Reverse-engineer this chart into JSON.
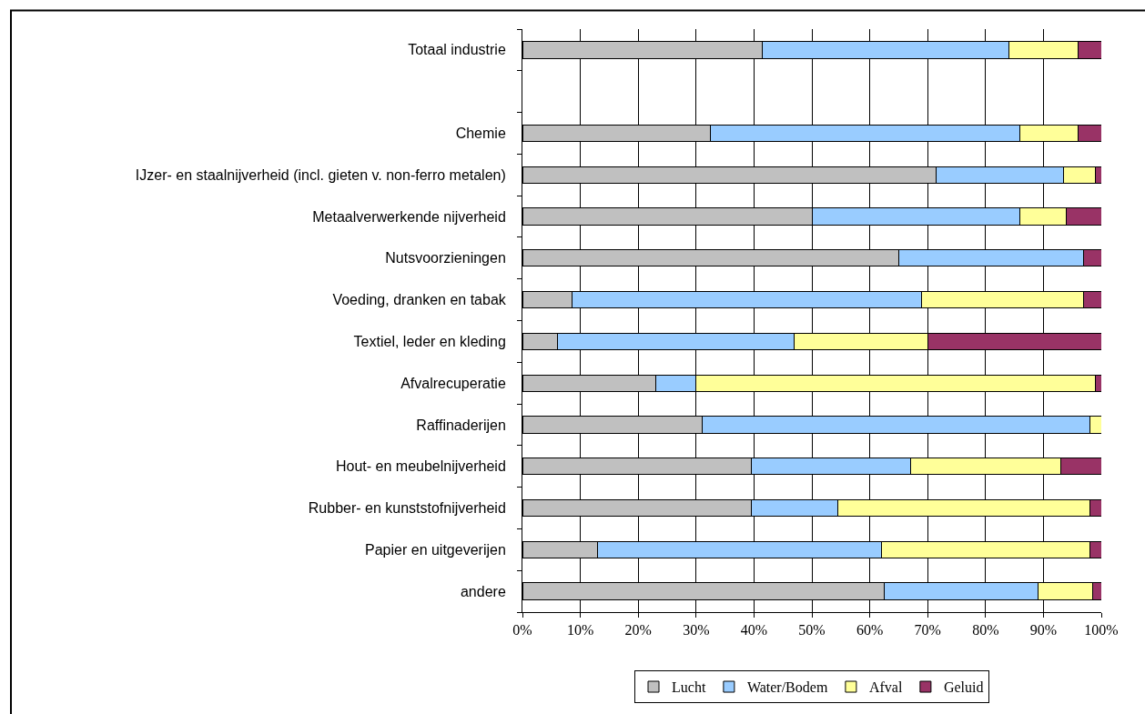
{
  "chart_data": {
    "type": "bar",
    "orientation": "horizontal",
    "stacked": true,
    "categories": [
      "Totaal industrie",
      null,
      "Chemie",
      "IJzer- en staalnijverheid (incl. gieten v. non-ferro metalen)",
      "Metaalverwerkende nijverheid",
      "Nutsvoorzieningen",
      "Voeding, dranken en tabak",
      "Textiel, leder en kleding",
      "Afvalrecuperatie",
      "Raffinaderijen",
      "Hout- en meubelnijverheid",
      "Rubber- en kunststofnijverheid",
      "Papier en uitgeverijen",
      "andere"
    ],
    "series": [
      {
        "name": "Lucht",
        "color": "#c0c0c0",
        "values": [
          41.5,
          null,
          32.5,
          71.5,
          50,
          65,
          8.5,
          6,
          23,
          31,
          39.5,
          39.5,
          13,
          62.5
        ]
      },
      {
        "name": "Water/Bodem",
        "color": "#99ccff",
        "values": [
          42.5,
          null,
          53.5,
          22,
          36,
          32,
          60.5,
          41,
          7,
          67,
          27.5,
          15,
          49,
          26.5
        ]
      },
      {
        "name": "Afval",
        "color": "#ffff99",
        "values": [
          12,
          null,
          10,
          5.5,
          8,
          null,
          28,
          23,
          69,
          2,
          26,
          43.5,
          36,
          9.5
        ]
      },
      {
        "name": "Geluid",
        "color": "#993366",
        "values": [
          4,
          null,
          4,
          1,
          6,
          3,
          3,
          30,
          1,
          null,
          7,
          2,
          2,
          1.5
        ]
      }
    ],
    "xlim": [
      0,
      100
    ],
    "xticks": [
      {
        "value": 0,
        "label": "0%"
      },
      {
        "value": 10,
        "label": "10%"
      },
      {
        "value": 20,
        "label": "20%"
      },
      {
        "value": 30,
        "label": "30%"
      },
      {
        "value": 40,
        "label": "40%"
      },
      {
        "value": 50,
        "label": "50%"
      },
      {
        "value": 60,
        "label": "60%"
      },
      {
        "value": 70,
        "label": "70%"
      },
      {
        "value": 80,
        "label": "80%"
      },
      {
        "value": 90,
        "label": "90%"
      },
      {
        "value": 100,
        "label": "100%"
      }
    ],
    "grid": "x",
    "legend": "bottom"
  }
}
